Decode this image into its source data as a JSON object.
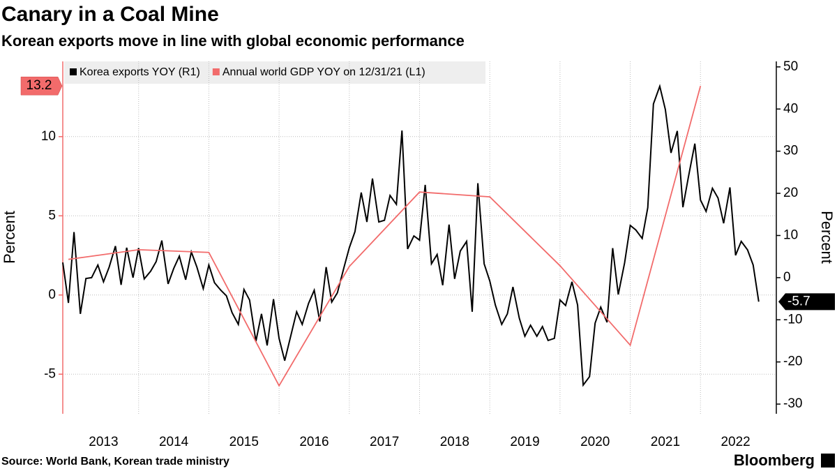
{
  "chart_data": {
    "type": "line",
    "title": "Canary in a Coal Mine",
    "subtitle": "Korean exports move in line with global economic performance",
    "source": "Source: World Bank, Korean trade ministry",
    "brand": "Bloomberg",
    "ylabel": "Percent",
    "y2label": "Percent",
    "xlim": [
      2012.92,
      2023.08
    ],
    "xticks": [
      {
        "value": 2013.5,
        "label": "2013"
      },
      {
        "value": 2014.5,
        "label": "2014"
      },
      {
        "value": 2015.5,
        "label": "2015"
      },
      {
        "value": 2016.5,
        "label": "2016"
      },
      {
        "value": 2017.5,
        "label": "2017"
      },
      {
        "value": 2018.5,
        "label": "2018"
      },
      {
        "value": 2019.5,
        "label": "2019"
      },
      {
        "value": 2020.5,
        "label": "2020"
      },
      {
        "value": 2021.5,
        "label": "2021"
      },
      {
        "value": 2022.5,
        "label": "2022"
      }
    ],
    "xgrid": [
      2014,
      2015,
      2016,
      2017,
      2018,
      2019,
      2020,
      2021,
      2022
    ],
    "ylim": [
      -7.5,
      14.75
    ],
    "yticks": [
      -5,
      0,
      5,
      10
    ],
    "y2lim": [
      -32.3,
      51.3
    ],
    "y2ticks": [
      -30,
      -20,
      -10,
      0,
      10,
      20,
      30,
      40,
      50
    ],
    "grid": true,
    "legend": "top-left",
    "series": [
      {
        "name": "Korea exports YOY (R1)",
        "color": "#000000",
        "axis": "y2",
        "x": [
          2012.92,
          2013.0,
          2013.08,
          2013.17,
          2013.25,
          2013.33,
          2013.42,
          2013.5,
          2013.58,
          2013.67,
          2013.75,
          2013.83,
          2013.92,
          2014.0,
          2014.08,
          2014.17,
          2014.25,
          2014.33,
          2014.42,
          2014.5,
          2014.58,
          2014.67,
          2014.75,
          2014.83,
          2014.92,
          2015.0,
          2015.08,
          2015.17,
          2015.25,
          2015.33,
          2015.42,
          2015.5,
          2015.58,
          2015.67,
          2015.75,
          2015.83,
          2015.92,
          2016.0,
          2016.08,
          2016.17,
          2016.25,
          2016.33,
          2016.42,
          2016.5,
          2016.58,
          2016.67,
          2016.75,
          2016.83,
          2016.92,
          2017.0,
          2017.08,
          2017.17,
          2017.25,
          2017.33,
          2017.42,
          2017.5,
          2017.58,
          2017.67,
          2017.75,
          2017.83,
          2017.92,
          2018.0,
          2018.08,
          2018.17,
          2018.25,
          2018.33,
          2018.42,
          2018.5,
          2018.58,
          2018.67,
          2018.75,
          2018.83,
          2018.92,
          2019.0,
          2019.08,
          2019.17,
          2019.25,
          2019.33,
          2019.42,
          2019.5,
          2019.58,
          2019.67,
          2019.75,
          2019.83,
          2019.92,
          2020.0,
          2020.08,
          2020.17,
          2020.25,
          2020.33,
          2020.42,
          2020.5,
          2020.58,
          2020.67,
          2020.75,
          2020.83,
          2020.92,
          2021.0,
          2021.08,
          2021.17,
          2021.25,
          2021.33,
          2021.42,
          2021.5,
          2021.58,
          2021.67,
          2021.75,
          2021.83,
          2021.92,
          2022.0,
          2022.08,
          2022.17,
          2022.25,
          2022.33,
          2022.42,
          2022.5,
          2022.58,
          2022.67,
          2022.75,
          2022.83
        ],
        "values": [
          3.6,
          -6,
          10.8,
          -8.6,
          -0.2,
          0,
          3,
          -1,
          2.5,
          7.5,
          -1.7,
          7.1,
          0,
          7,
          -0.3,
          1.5,
          3.8,
          8.8,
          -1.5,
          2.2,
          5.1,
          -0.5,
          6.1,
          2.5,
          -2.6,
          3,
          -1.2,
          -3,
          -4.3,
          -8.3,
          -11.1,
          -2.8,
          -5.3,
          -15.1,
          -8.6,
          -16.1,
          -5.1,
          -14.4,
          -19.7,
          -13.6,
          -8.1,
          -11.1,
          -6.1,
          -3,
          -10.4,
          2.5,
          -5.8,
          -3.6,
          2.2,
          7.1,
          10.9,
          20.2,
          13.2,
          23.5,
          13.2,
          13.6,
          19.5,
          17.4,
          34.9,
          6.8,
          9.9,
          8.9,
          22,
          3.3,
          5.5,
          -1.8,
          12.6,
          -0.3,
          6.3,
          8.6,
          -8.1,
          22.4,
          3.3,
          -0.8,
          -6.5,
          -11.1,
          -8.6,
          -2.2,
          -9.6,
          -13.9,
          -11.3,
          -13.9,
          -11.6,
          -14.9,
          -14.4,
          -5.3,
          -6.6,
          -1,
          -6.5,
          -25.5,
          -23.5,
          -10.8,
          -7,
          -10.6,
          7,
          -4,
          3.5,
          12.4,
          11.3,
          9.3,
          16.6,
          41.2,
          45.4,
          39.9,
          29.6,
          34.8,
          16.7,
          24,
          31.8,
          18.4,
          15.7,
          21.2,
          18.9,
          12.9,
          21.4,
          5.3,
          8.6,
          6.6,
          3,
          -5.7
        ]
      },
      {
        "name": "Annual world GDP YOY on 12/31/21 (L1)",
        "color": "#f26b6b",
        "axis": "y",
        "x": [
          2013,
          2014,
          2015,
          2016,
          2017,
          2018,
          2019,
          2020,
          2021,
          2022
        ],
        "values": [
          2.25,
          2.86,
          2.69,
          -5.73,
          1.8,
          6.5,
          6.2,
          1.85,
          -3.17,
          13.2
        ]
      }
    ]
  }
}
